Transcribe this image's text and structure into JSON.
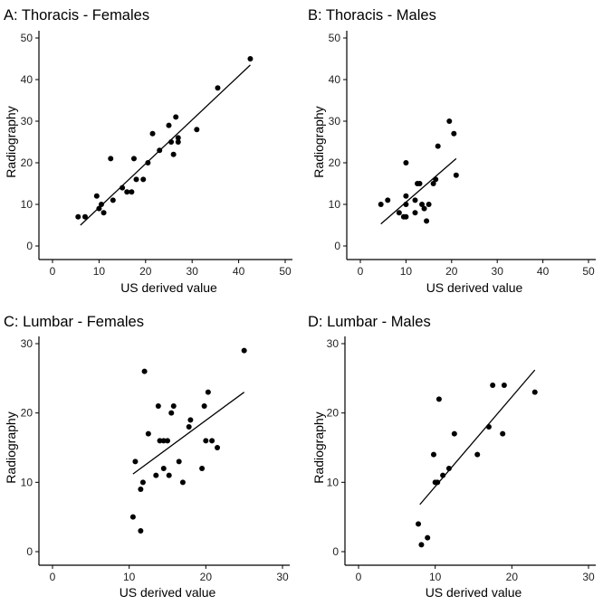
{
  "chart_data": [
    {
      "type": "scatter",
      "title": "A: Thoracis - Females",
      "xlabel": "US derived value",
      "ylabel": "Radiography",
      "xlim": [
        0,
        50
      ],
      "ylim": [
        0,
        50
      ],
      "xticks": [
        0,
        10,
        20,
        30,
        40,
        50
      ],
      "yticks": [
        0,
        10,
        20,
        30,
        40,
        50
      ],
      "points": [
        [
          5.5,
          7
        ],
        [
          7,
          7
        ],
        [
          9.5,
          12
        ],
        [
          10,
          9
        ],
        [
          10.5,
          10
        ],
        [
          11,
          8
        ],
        [
          12.5,
          21
        ],
        [
          13,
          11
        ],
        [
          15,
          14
        ],
        [
          16,
          13
        ],
        [
          17,
          13
        ],
        [
          17.5,
          21
        ],
        [
          18,
          16
        ],
        [
          19.5,
          16
        ],
        [
          20.5,
          20
        ],
        [
          21.5,
          27
        ],
        [
          23,
          23
        ],
        [
          25,
          29
        ],
        [
          25.5,
          25
        ],
        [
          26,
          22
        ],
        [
          26.5,
          31
        ],
        [
          27,
          26
        ],
        [
          27,
          25
        ],
        [
          31,
          28
        ],
        [
          35.5,
          38
        ],
        [
          42.5,
          45
        ]
      ],
      "fit_line": {
        "x": [
          6,
          42.5
        ],
        "y": [
          5,
          43.5
        ]
      }
    },
    {
      "type": "scatter",
      "title": "B: Thoracis - Males",
      "xlabel": "US derived value",
      "ylabel": "Radiography",
      "xlim": [
        0,
        50
      ],
      "ylim": [
        0,
        50
      ],
      "xticks": [
        0,
        10,
        20,
        30,
        40,
        50
      ],
      "yticks": [
        0,
        10,
        20,
        30,
        40,
        50
      ],
      "points": [
        [
          4.5,
          10
        ],
        [
          6,
          11
        ],
        [
          8.5,
          8
        ],
        [
          9.5,
          7
        ],
        [
          10,
          7
        ],
        [
          10,
          10
        ],
        [
          10,
          12
        ],
        [
          10,
          20
        ],
        [
          12,
          8
        ],
        [
          12,
          11
        ],
        [
          12.5,
          15
        ],
        [
          13,
          15
        ],
        [
          13.5,
          10
        ],
        [
          14,
          9
        ],
        [
          14.5,
          6
        ],
        [
          15,
          10
        ],
        [
          16,
          15
        ],
        [
          16.5,
          16
        ],
        [
          17,
          24
        ],
        [
          19.5,
          30
        ],
        [
          20.5,
          27
        ],
        [
          21,
          17
        ]
      ],
      "fit_line": {
        "x": [
          4.5,
          21
        ],
        "y": [
          5.3,
          21
        ]
      }
    },
    {
      "type": "scatter",
      "title": "C: Lumbar - Females",
      "xlabel": "US derived value",
      "ylabel": "Radiography",
      "xlim": [
        0,
        30
      ],
      "ylim": [
        0,
        30
      ],
      "xticks": [
        0,
        10,
        20,
        30
      ],
      "yticks": [
        0,
        10,
        20,
        30
      ],
      "points": [
        [
          10.5,
          5
        ],
        [
          10.8,
          13
        ],
        [
          11.5,
          3
        ],
        [
          11.5,
          9
        ],
        [
          11.8,
          10
        ],
        [
          12,
          26
        ],
        [
          12.5,
          17
        ],
        [
          13.5,
          11
        ],
        [
          13.8,
          21
        ],
        [
          14,
          16
        ],
        [
          14.5,
          16
        ],
        [
          14.5,
          12
        ],
        [
          15,
          16
        ],
        [
          15.2,
          11
        ],
        [
          15.5,
          20
        ],
        [
          15.8,
          21
        ],
        [
          16.5,
          13
        ],
        [
          17,
          10
        ],
        [
          17.8,
          18
        ],
        [
          18,
          19
        ],
        [
          19.5,
          12
        ],
        [
          19.8,
          21
        ],
        [
          20,
          16
        ],
        [
          20.3,
          23
        ],
        [
          20.8,
          16
        ],
        [
          21.5,
          15
        ],
        [
          25,
          29
        ]
      ],
      "fit_line": {
        "x": [
          10.5,
          25
        ],
        "y": [
          11.2,
          23
        ]
      }
    },
    {
      "type": "scatter",
      "title": "D: Lumbar - Males",
      "xlabel": "US derived value",
      "ylabel": "Radiography",
      "xlim": [
        0,
        30
      ],
      "ylim": [
        0,
        30
      ],
      "xticks": [
        0,
        10,
        20,
        30
      ],
      "yticks": [
        0,
        10,
        20,
        30
      ],
      "points": [
        [
          7.8,
          4
        ],
        [
          8.2,
          1
        ],
        [
          9,
          2
        ],
        [
          9.8,
          14
        ],
        [
          10,
          10
        ],
        [
          10.3,
          10
        ],
        [
          10.5,
          22
        ],
        [
          11,
          11
        ],
        [
          11.8,
          12
        ],
        [
          12.5,
          17
        ],
        [
          15.5,
          14
        ],
        [
          17,
          18
        ],
        [
          17.5,
          24
        ],
        [
          18.8,
          17
        ],
        [
          19,
          24
        ],
        [
          23,
          23
        ]
      ],
      "fit_line": {
        "x": [
          8,
          23
        ],
        "y": [
          6.8,
          26.2
        ]
      }
    }
  ]
}
